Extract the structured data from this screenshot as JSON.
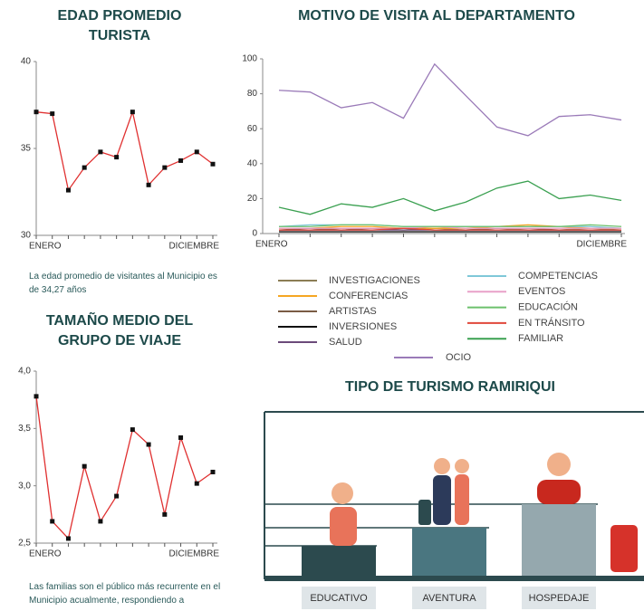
{
  "chart_data": [
    {
      "type": "line",
      "title": "EDAD PROMEDIO TURISTA",
      "categories": [
        "ENERO",
        null,
        null,
        null,
        null,
        null,
        null,
        null,
        null,
        null,
        null,
        "DICIEMBRE"
      ],
      "values": [
        37.1,
        37.0,
        32.6,
        33.9,
        34.8,
        34.5,
        37.1,
        32.9,
        33.9,
        34.3,
        34.8,
        34.1
      ],
      "color": "#e03030",
      "marker_color": "#111111",
      "ylim": [
        30,
        40
      ],
      "yticks": [
        30,
        35,
        40
      ],
      "note": "La edad promedio de visitantes al Municipio es de 34,27 años"
    },
    {
      "type": "line",
      "title": "MOTIVO DE VISITA AL DEPARTAMENTO",
      "categories": [
        "ENERO",
        null,
        null,
        null,
        null,
        null,
        null,
        null,
        null,
        null,
        null,
        "DICIEMBRE"
      ],
      "ylim": [
        0,
        100
      ],
      "yticks": [
        0,
        20,
        40,
        60,
        80,
        100
      ],
      "series": [
        {
          "name": "INVESTIGACIONES",
          "color": "#8b7d55",
          "values": [
            2,
            2,
            3,
            3,
            2,
            3,
            2,
            3,
            2,
            2,
            3,
            2
          ]
        },
        {
          "name": "CONFERENCIAS",
          "color": "#f5a623",
          "values": [
            3,
            3,
            4,
            4,
            3,
            3,
            3,
            4,
            5,
            4,
            3,
            3
          ]
        },
        {
          "name": "ARTISTAS",
          "color": "#7a5c44",
          "values": [
            2,
            3,
            2,
            3,
            3,
            2,
            2,
            3,
            3,
            2,
            2,
            2
          ]
        },
        {
          "name": "INVERSIONES",
          "color": "#111111",
          "values": [
            1,
            1,
            1,
            1,
            1,
            1,
            1,
            1,
            1,
            1,
            1,
            1
          ]
        },
        {
          "name": "SALUD",
          "color": "#6b4a7a",
          "values": [
            2,
            2,
            2,
            2,
            2,
            2,
            2,
            2,
            2,
            2,
            2,
            2
          ]
        },
        {
          "name": "COMPETENCIAS",
          "color": "#7fc8d8",
          "values": [
            4,
            5,
            5,
            5,
            4,
            4,
            4,
            4,
            4,
            4,
            4,
            3
          ]
        },
        {
          "name": "EVENTOS",
          "color": "#e8a0c8",
          "values": [
            3,
            3,
            3,
            3,
            3,
            4,
            3,
            3,
            3,
            3,
            3,
            3
          ]
        },
        {
          "name": "EDUCACIÓN",
          "color": "#6cc06c",
          "values": [
            4,
            4,
            5,
            5,
            4,
            4,
            4,
            4,
            4,
            4,
            5,
            4
          ]
        },
        {
          "name": "EN TRÁNSITO",
          "color": "#e0473a",
          "values": [
            2,
            2,
            2,
            2,
            3,
            2,
            2,
            2,
            2,
            2,
            2,
            2
          ]
        },
        {
          "name": "FAMILIAR",
          "color": "#3aa050",
          "values": [
            15,
            11,
            17,
            15,
            20,
            13,
            18,
            26,
            30,
            20,
            22,
            19
          ]
        },
        {
          "name": "OCIO",
          "color": "#9a7ab8",
          "values": [
            82,
            81,
            72,
            75,
            66,
            97,
            79,
            61,
            56,
            67,
            68,
            65
          ]
        }
      ]
    },
    {
      "type": "line",
      "title": "TAMAÑO MEDIO DEL GRUPO DE VIAJE",
      "categories": [
        "ENERO",
        null,
        null,
        null,
        null,
        null,
        null,
        null,
        null,
        null,
        null,
        "DICIEMBRE"
      ],
      "values": [
        3.78,
        2.69,
        2.54,
        3.17,
        2.69,
        2.91,
        3.49,
        3.36,
        2.75,
        3.42,
        3.02,
        3.12
      ],
      "color": "#e03030",
      "marker_color": "#111111",
      "ylim": [
        2.5,
        4.0
      ],
      "yticks": [
        {
          "value": 2.5,
          "label": "2,5"
        },
        {
          "value": 3.0,
          "label": "3,0"
        },
        {
          "value": 3.5,
          "label": "3,5"
        },
        {
          "value": 4.0,
          "label": "4,0"
        }
      ],
      "note": "Las familias son el público más recurrente en el Municipio acualmente, respondiendo a"
    }
  ],
  "tourism": {
    "title": "TIPO DE TURISMO RAMIRIQUI",
    "steps": [
      "EDUCATIVO",
      "AVENTURA",
      "HOSPEDAJE"
    ]
  }
}
